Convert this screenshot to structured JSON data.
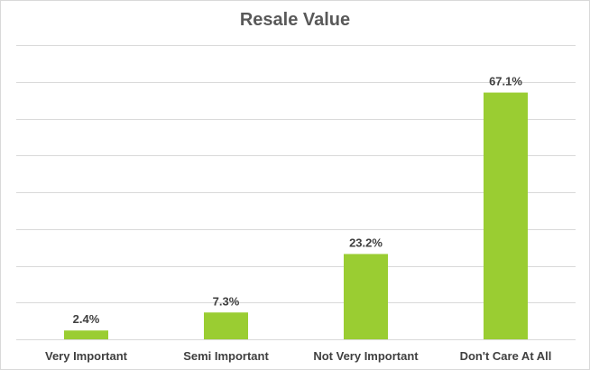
{
  "chart_data": {
    "type": "bar",
    "title": "Resale Value",
    "categories": [
      "Very Important",
      "Semi Important",
      "Not Very Important",
      "Don't Care At All"
    ],
    "values": [
      2.4,
      7.3,
      23.2,
      67.1
    ],
    "data_labels": [
      "2.4%",
      "7.3%",
      "23.2%",
      "67.1%"
    ],
    "ylim": [
      0,
      80
    ],
    "y_grid_step": 10,
    "y_axis_labels_shown": false,
    "grid": true,
    "legend": "none",
    "colors": {
      "bar": "#9acd32",
      "grid": "#d9d9d9",
      "text": "#404040",
      "title": "#595959"
    }
  }
}
